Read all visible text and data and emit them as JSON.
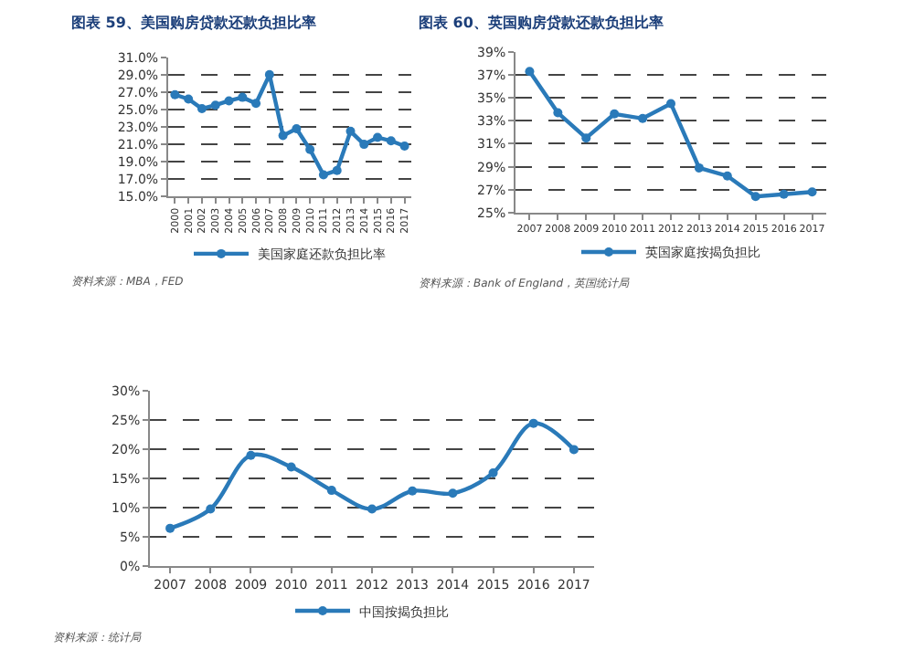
{
  "chart_data": [
    {
      "type": "line",
      "title": "图表 59、美国购房贷款还款负担比率",
      "categories": [
        "2000",
        "2001",
        "2002",
        "2003",
        "2004",
        "2005",
        "2006",
        "2007",
        "2008",
        "2009",
        "2010",
        "2011",
        "2012",
        "2013",
        "2014",
        "2015",
        "2016",
        "2017"
      ],
      "series": [
        {
          "name": "美国家庭还款负担比率",
          "color": "#2a7ab9",
          "values": [
            26.7,
            26.2,
            25.1,
            25.5,
            26.0,
            26.4,
            25.7,
            29.0,
            22.0,
            22.8,
            20.4,
            17.5,
            18.0,
            22.5,
            21.0,
            21.8,
            21.4,
            20.8
          ]
        }
      ],
      "ylim": [
        15,
        31
      ],
      "yticks": [
        {
          "value": 15,
          "label": "15.0%"
        },
        {
          "value": 17,
          "label": "17.0%"
        },
        {
          "value": 19,
          "label": "19.0%"
        },
        {
          "value": 21,
          "label": "21.0%"
        },
        {
          "value": 23,
          "label": "23.0%"
        },
        {
          "value": 25,
          "label": "25.0%"
        },
        {
          "value": 27,
          "label": "27.0%"
        },
        {
          "value": 29,
          "label": "29.0%"
        },
        {
          "value": 31,
          "label": "31.0%"
        }
      ],
      "grid": "y",
      "legend": "bottom",
      "marker": "circle",
      "line_style": "solid",
      "annotations": [
        "资料来源：MBA，FED"
      ]
    },
    {
      "type": "line",
      "title": "图表 60、英国购房贷款还款负担比率",
      "categories": [
        "2007",
        "2008",
        "2009",
        "2010",
        "2011",
        "2012",
        "2013",
        "2014",
        "2015",
        "2016",
        "2017"
      ],
      "series": [
        {
          "name": "英国家庭按揭负担比",
          "color": "#2a7ab9",
          "values": [
            37.3,
            33.7,
            31.5,
            33.6,
            33.2,
            34.5,
            28.9,
            28.2,
            26.4,
            26.6,
            26.8
          ]
        }
      ],
      "ylim": [
        25,
        39
      ],
      "yticks": [
        {
          "value": 25,
          "label": "25%"
        },
        {
          "value": 27,
          "label": "27%"
        },
        {
          "value": 29,
          "label": "29%"
        },
        {
          "value": 31,
          "label": "31%"
        },
        {
          "value": 33,
          "label": "33%"
        },
        {
          "value": 35,
          "label": "35%"
        },
        {
          "value": 37,
          "label": "37%"
        },
        {
          "value": 39,
          "label": "39%"
        }
      ],
      "grid": "y",
      "legend": "bottom",
      "marker": "circle",
      "line_style": "solid",
      "annotations": [
        "资料来源：Bank of England，英国统计局"
      ]
    },
    {
      "type": "line",
      "categories": [
        "2007",
        "2008",
        "2009",
        "2010",
        "2011",
        "2012",
        "2013",
        "2014",
        "2015",
        "2016",
        "2017"
      ],
      "series": [
        {
          "name": "中国按揭负担比",
          "color": "#2a7ab9",
          "values": [
            6.5,
            9.8,
            19.0,
            17.0,
            13.0,
            9.8,
            12.9,
            12.5,
            16.0,
            24.5,
            20.0
          ]
        }
      ],
      "ylim": [
        0,
        30
      ],
      "yticks": [
        {
          "value": 0,
          "label": "0%"
        },
        {
          "value": 5,
          "label": "5%"
        },
        {
          "value": 10,
          "label": "10%"
        },
        {
          "value": 15,
          "label": "15%"
        },
        {
          "value": 20,
          "label": "20%"
        },
        {
          "value": 25,
          "label": "25%"
        },
        {
          "value": 30,
          "label": "30%"
        }
      ],
      "grid": "y",
      "legend": "bottom",
      "marker": "circle",
      "line_style": "solid",
      "annotations": [
        "资料来源：统计局"
      ]
    }
  ]
}
